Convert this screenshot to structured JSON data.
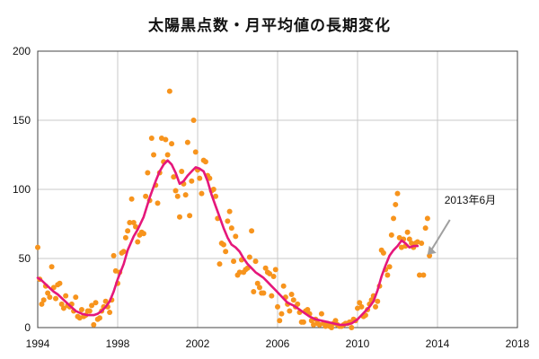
{
  "chart_data": {
    "type": "scatter",
    "title": "太陽黒点数・月平均値の長期変化",
    "xlabel": "",
    "ylabel": "",
    "xlim": [
      1994,
      2018
    ],
    "ylim": [
      0,
      200
    ],
    "x_ticks": [
      1994,
      1998,
      2002,
      2006,
      2010,
      2014,
      2018
    ],
    "y_ticks": [
      0,
      50,
      100,
      150,
      200
    ],
    "grid": true,
    "annotation": {
      "text": "2013年6月",
      "x": 2013.45,
      "y": 52
    },
    "colors": {
      "monthly": "#f7941d",
      "smoothed": "#e5177b",
      "grid": "#c8c8c8",
      "annotation_arrow": "#a0a0a0"
    },
    "series": [
      {
        "type": "scatter",
        "points": [
          [
            1994.0,
            58
          ],
          [
            1994.1,
            35
          ],
          [
            1994.2,
            17
          ],
          [
            1994.3,
            20
          ],
          [
            1994.4,
            30
          ],
          [
            1994.5,
            25
          ],
          [
            1994.6,
            22
          ],
          [
            1994.7,
            44
          ],
          [
            1994.8,
            29
          ],
          [
            1994.9,
            21
          ],
          [
            1995.0,
            31
          ],
          [
            1995.1,
            32
          ],
          [
            1995.2,
            17
          ],
          [
            1995.3,
            14
          ],
          [
            1995.4,
            23
          ],
          [
            1995.5,
            16
          ],
          [
            1995.6,
            15
          ],
          [
            1995.7,
            17
          ],
          [
            1995.8,
            12
          ],
          [
            1995.9,
            22
          ],
          [
            1996.0,
            8
          ],
          [
            1996.1,
            7
          ],
          [
            1996.2,
            13
          ],
          [
            1996.3,
            8
          ],
          [
            1996.4,
            9
          ],
          [
            1996.5,
            12
          ],
          [
            1996.6,
            12
          ],
          [
            1996.7,
            16
          ],
          [
            1996.8,
            2
          ],
          [
            1996.9,
            18
          ],
          [
            1997.0,
            6
          ],
          [
            1997.1,
            7
          ],
          [
            1997.2,
            12
          ],
          [
            1997.3,
            15
          ],
          [
            1997.4,
            19
          ],
          [
            1997.5,
            15
          ],
          [
            1997.6,
            11
          ],
          [
            1997.7,
            20
          ],
          [
            1997.8,
            52
          ],
          [
            1997.9,
            41
          ],
          [
            1998.0,
            32
          ],
          [
            1998.1,
            40
          ],
          [
            1998.2,
            54
          ],
          [
            1998.3,
            55
          ],
          [
            1998.4,
            65
          ],
          [
            1998.5,
            70
          ],
          [
            1998.6,
            76
          ],
          [
            1998.7,
            93
          ],
          [
            1998.8,
            76
          ],
          [
            1998.9,
            73
          ],
          [
            1999.0,
            62
          ],
          [
            1999.1,
            67
          ],
          [
            1999.2,
            69
          ],
          [
            1999.3,
            68
          ],
          [
            1999.4,
            95
          ],
          [
            1999.5,
            112
          ],
          [
            1999.6,
            92
          ],
          [
            1999.7,
            137
          ],
          [
            1999.8,
            125
          ],
          [
            1999.9,
            103
          ],
          [
            2000.0,
            90
          ],
          [
            2000.1,
            112
          ],
          [
            2000.2,
            137
          ],
          [
            2000.3,
            120
          ],
          [
            2000.4,
            136
          ],
          [
            2000.5,
            125
          ],
          [
            2000.6,
            171
          ],
          [
            2000.7,
            133
          ],
          [
            2000.8,
            109
          ],
          [
            2000.9,
            99
          ],
          [
            2001.0,
            95
          ],
          [
            2001.1,
            80
          ],
          [
            2001.2,
            113
          ],
          [
            2001.3,
            104
          ],
          [
            2001.4,
            96
          ],
          [
            2001.5,
            134
          ],
          [
            2001.6,
            81
          ],
          [
            2001.7,
            106
          ],
          [
            2001.8,
            150
          ],
          [
            2001.9,
            127
          ],
          [
            2002.0,
            114
          ],
          [
            2002.1,
            108
          ],
          [
            2002.2,
            97
          ],
          [
            2002.3,
            121
          ],
          [
            2002.4,
            120
          ],
          [
            2002.5,
            110
          ],
          [
            2002.6,
            108
          ],
          [
            2002.7,
            99
          ],
          [
            2002.8,
            100
          ],
          [
            2002.9,
            95
          ],
          [
            2003.0,
            79
          ],
          [
            2003.1,
            46
          ],
          [
            2003.2,
            61
          ],
          [
            2003.3,
            60
          ],
          [
            2003.4,
            55
          ],
          [
            2003.5,
            77
          ],
          [
            2003.6,
            84
          ],
          [
            2003.7,
            72
          ],
          [
            2003.8,
            48
          ],
          [
            2003.9,
            66
          ],
          [
            2004.0,
            38
          ],
          [
            2004.1,
            40
          ],
          [
            2004.2,
            49
          ],
          [
            2004.3,
            40
          ],
          [
            2004.4,
            42
          ],
          [
            2004.5,
            43
          ],
          [
            2004.6,
            51
          ],
          [
            2004.7,
            70
          ],
          [
            2004.8,
            26
          ],
          [
            2004.9,
            48
          ],
          [
            2005.0,
            32
          ],
          [
            2005.1,
            29
          ],
          [
            2005.2,
            25
          ],
          [
            2005.3,
            25
          ],
          [
            2005.4,
            43
          ],
          [
            2005.5,
            40
          ],
          [
            2005.6,
            39
          ],
          [
            2005.7,
            23
          ],
          [
            2005.8,
            37
          ],
          [
            2005.9,
            42
          ],
          [
            2006.0,
            15
          ],
          [
            2006.1,
            5
          ],
          [
            2006.2,
            10
          ],
          [
            2006.3,
            30
          ],
          [
            2006.4,
            22
          ],
          [
            2006.5,
            17
          ],
          [
            2006.6,
            12
          ],
          [
            2006.7,
            24
          ],
          [
            2006.8,
            20
          ],
          [
            2006.9,
            15
          ],
          [
            2007.0,
            17
          ],
          [
            2007.1,
            11
          ],
          [
            2007.2,
            4
          ],
          [
            2007.3,
            4
          ],
          [
            2007.4,
            12
          ],
          [
            2007.5,
            13
          ],
          [
            2007.6,
            10
          ],
          [
            2007.7,
            5
          ],
          [
            2007.8,
            2
          ],
          [
            2007.9,
            6
          ],
          [
            2008.0,
            3
          ],
          [
            2008.1,
            2
          ],
          [
            2008.2,
            10
          ],
          [
            2008.3,
            3
          ],
          [
            2008.4,
            1
          ],
          [
            2008.5,
            3
          ],
          [
            2008.6,
            1
          ],
          [
            2008.7,
            0
          ],
          [
            2008.8,
            3
          ],
          [
            2008.9,
            5
          ],
          [
            2009.0,
            2
          ],
          [
            2009.1,
            1
          ],
          [
            2009.2,
            1
          ],
          [
            2009.3,
            2
          ],
          [
            2009.4,
            3
          ],
          [
            2009.5,
            3
          ],
          [
            2009.6,
            4
          ],
          [
            2009.7,
            0
          ],
          [
            2009.8,
            6
          ],
          [
            2009.9,
            5
          ],
          [
            2010.0,
            14
          ],
          [
            2010.1,
            18
          ],
          [
            2010.2,
            15
          ],
          [
            2010.3,
            8
          ],
          [
            2010.4,
            9
          ],
          [
            2010.5,
            13
          ],
          [
            2010.6,
            17
          ],
          [
            2010.7,
            20
          ],
          [
            2010.8,
            23
          ],
          [
            2010.9,
            15
          ],
          [
            2011.0,
            19
          ],
          [
            2011.1,
            30
          ],
          [
            2011.2,
            56
          ],
          [
            2011.3,
            54
          ],
          [
            2011.4,
            42
          ],
          [
            2011.5,
            38
          ],
          [
            2011.6,
            44
          ],
          [
            2011.7,
            67
          ],
          [
            2011.8,
            79
          ],
          [
            2011.9,
            89
          ],
          [
            2012.0,
            97
          ],
          [
            2012.1,
            65
          ],
          [
            2012.2,
            58
          ],
          [
            2012.3,
            64
          ],
          [
            2012.4,
            59
          ],
          [
            2012.5,
            69
          ],
          [
            2012.6,
            64
          ],
          [
            2012.7,
            61
          ],
          [
            2012.8,
            58
          ],
          [
            2012.9,
            61
          ],
          [
            2013.0,
            62
          ],
          [
            2013.1,
            38
          ],
          [
            2013.2,
            61
          ],
          [
            2013.3,
            38
          ],
          [
            2013.4,
            72
          ],
          [
            2013.5,
            79
          ],
          [
            2013.6,
            52
          ]
        ]
      },
      {
        "type": "line",
        "points": [
          [
            1994.0,
            36
          ],
          [
            1994.2,
            34
          ],
          [
            1994.5,
            30
          ],
          [
            1994.8,
            26
          ],
          [
            1995.0,
            24
          ],
          [
            1995.3,
            20
          ],
          [
            1995.6,
            16
          ],
          [
            1995.9,
            12
          ],
          [
            1996.2,
            10
          ],
          [
            1996.5,
            9
          ],
          [
            1996.8,
            9
          ],
          [
            1997.0,
            10
          ],
          [
            1997.2,
            12
          ],
          [
            1997.4,
            15
          ],
          [
            1997.6,
            19
          ],
          [
            1997.8,
            26
          ],
          [
            1998.0,
            35
          ],
          [
            1998.3,
            46
          ],
          [
            1998.5,
            56
          ],
          [
            1998.8,
            66
          ],
          [
            1999.0,
            71
          ],
          [
            1999.3,
            80
          ],
          [
            1999.6,
            94
          ],
          [
            1999.9,
            106
          ],
          [
            2000.1,
            113
          ],
          [
            2000.3,
            118
          ],
          [
            2000.5,
            121
          ],
          [
            2000.7,
            118
          ],
          [
            2000.9,
            112
          ],
          [
            2001.1,
            104
          ],
          [
            2001.3,
            106
          ],
          [
            2001.5,
            110
          ],
          [
            2001.7,
            113
          ],
          [
            2001.9,
            116
          ],
          [
            2002.1,
            115
          ],
          [
            2002.3,
            113
          ],
          [
            2002.5,
            106
          ],
          [
            2002.7,
            96
          ],
          [
            2002.9,
            88
          ],
          [
            2003.1,
            80
          ],
          [
            2003.3,
            72
          ],
          [
            2003.5,
            65
          ],
          [
            2003.7,
            60
          ],
          [
            2003.9,
            58
          ],
          [
            2004.1,
            55
          ],
          [
            2004.3,
            50
          ],
          [
            2004.5,
            46
          ],
          [
            2004.7,
            43
          ],
          [
            2004.9,
            40
          ],
          [
            2005.1,
            38
          ],
          [
            2005.3,
            36
          ],
          [
            2005.5,
            33
          ],
          [
            2005.7,
            30
          ],
          [
            2005.9,
            27
          ],
          [
            2006.1,
            24
          ],
          [
            2006.3,
            21
          ],
          [
            2006.5,
            18
          ],
          [
            2006.8,
            16
          ],
          [
            2007.0,
            14
          ],
          [
            2007.3,
            11
          ],
          [
            2007.6,
            8
          ],
          [
            2007.9,
            6
          ],
          [
            2008.2,
            5
          ],
          [
            2008.5,
            4
          ],
          [
            2008.8,
            3
          ],
          [
            2009.1,
            2
          ],
          [
            2009.4,
            2
          ],
          [
            2009.7,
            3
          ],
          [
            2010.0,
            6
          ],
          [
            2010.2,
            9
          ],
          [
            2010.4,
            12
          ],
          [
            2010.6,
            15
          ],
          [
            2010.8,
            19
          ],
          [
            2011.0,
            27
          ],
          [
            2011.2,
            37
          ],
          [
            2011.4,
            45
          ],
          [
            2011.6,
            52
          ],
          [
            2011.8,
            56
          ],
          [
            2012.0,
            59
          ],
          [
            2012.2,
            63
          ],
          [
            2012.4,
            61
          ],
          [
            2012.6,
            58
          ],
          [
            2012.8,
            59
          ],
          [
            2013.0,
            59
          ]
        ]
      }
    ]
  }
}
